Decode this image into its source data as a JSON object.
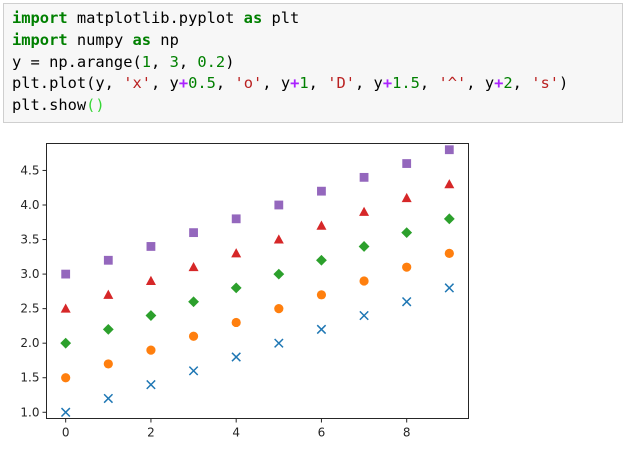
{
  "notebook": {
    "code_lines": [
      [
        {
          "t": "import",
          "c": "kw"
        },
        {
          "t": " matplotlib.pyplot ",
          "c": ""
        },
        {
          "t": "as",
          "c": "kw"
        },
        {
          "t": " plt",
          "c": ""
        }
      ],
      [
        {
          "t": "import",
          "c": "kw"
        },
        {
          "t": " numpy ",
          "c": ""
        },
        {
          "t": "as",
          "c": "kw"
        },
        {
          "t": " np",
          "c": ""
        }
      ],
      [
        {
          "t": "y = np.arange(",
          "c": ""
        },
        {
          "t": "1",
          "c": "num"
        },
        {
          "t": ", ",
          "c": ""
        },
        {
          "t": "3",
          "c": "num"
        },
        {
          "t": ", ",
          "c": ""
        },
        {
          "t": "0.2",
          "c": "num"
        },
        {
          "t": ")",
          "c": ""
        }
      ],
      [
        {
          "t": "plt.plot(y, ",
          "c": ""
        },
        {
          "t": "'x'",
          "c": "str"
        },
        {
          "t": ", y",
          "c": ""
        },
        {
          "t": "+",
          "c": "op"
        },
        {
          "t": "0.5",
          "c": "num"
        },
        {
          "t": ", ",
          "c": ""
        },
        {
          "t": "'o'",
          "c": "str"
        },
        {
          "t": ", y",
          "c": ""
        },
        {
          "t": "+",
          "c": "op"
        },
        {
          "t": "1",
          "c": "num"
        },
        {
          "t": ", ",
          "c": ""
        },
        {
          "t": "'D'",
          "c": "str"
        },
        {
          "t": ", y",
          "c": ""
        },
        {
          "t": "+",
          "c": "op"
        },
        {
          "t": "1.5",
          "c": "num"
        },
        {
          "t": ", ",
          "c": ""
        },
        {
          "t": "'^'",
          "c": "str"
        },
        {
          "t": ", y",
          "c": ""
        },
        {
          "t": "+",
          "c": "op"
        },
        {
          "t": "2",
          "c": "num"
        },
        {
          "t": ", ",
          "c": ""
        },
        {
          "t": "'s'",
          "c": "str"
        },
        {
          "t": ")",
          "c": ""
        }
      ],
      [
        {
          "t": "plt.show",
          "c": ""
        },
        {
          "t": "()",
          "c": "paren-hl"
        }
      ]
    ]
  },
  "chart_data": {
    "type": "scatter",
    "x": [
      0,
      1,
      2,
      3,
      4,
      5,
      6,
      7,
      8,
      9
    ],
    "xticks": [
      0,
      2,
      4,
      6,
      8
    ],
    "yticks": [
      1.0,
      1.5,
      2.0,
      2.5,
      3.0,
      3.5,
      4.0,
      4.5
    ],
    "xlim": [
      -0.45,
      9.45
    ],
    "ylim": [
      0.91,
      4.89
    ],
    "grid": false,
    "series": [
      {
        "marker": "x",
        "color": "#1f77b4",
        "values": [
          1.0,
          1.2,
          1.4,
          1.6,
          1.8,
          2.0,
          2.2,
          2.4,
          2.6,
          2.8
        ]
      },
      {
        "marker": "o",
        "color": "#ff7f0e",
        "values": [
          1.5,
          1.7,
          1.9,
          2.1,
          2.3,
          2.5,
          2.7,
          2.9,
          3.1,
          3.3
        ]
      },
      {
        "marker": "D",
        "color": "#2ca02c",
        "values": [
          2.0,
          2.2,
          2.4,
          2.6,
          2.8,
          3.0,
          3.2,
          3.4,
          3.6,
          3.8
        ]
      },
      {
        "marker": "^",
        "color": "#d62728",
        "values": [
          2.5,
          2.7,
          2.9,
          3.1,
          3.3,
          3.5,
          3.7,
          3.9,
          4.1,
          4.3
        ]
      },
      {
        "marker": "s",
        "color": "#9467bd",
        "values": [
          3.0,
          3.2,
          3.4,
          3.6,
          3.8,
          4.0,
          4.2,
          4.4,
          4.6,
          4.8
        ]
      }
    ]
  }
}
